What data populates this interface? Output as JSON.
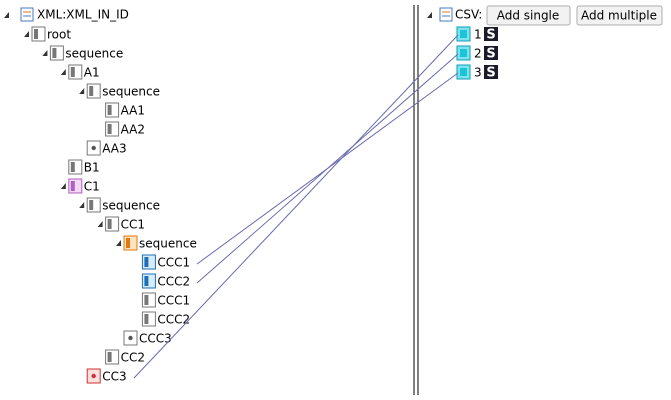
{
  "xml_tree": {
    "title": "XML:XML_IN_ID",
    "nodes": [
      {
        "label": "root"
      },
      {
        "label": "sequence"
      },
      {
        "label": "A1"
      },
      {
        "label": "sequence"
      },
      {
        "label": "AA1"
      },
      {
        "label": "AA2"
      },
      {
        "label": "AA3"
      },
      {
        "label": "B1"
      },
      {
        "label": "C1"
      },
      {
        "label": "sequence"
      },
      {
        "label": "CC1"
      },
      {
        "label": "sequence"
      },
      {
        "label": "CCC1"
      },
      {
        "label": "CCC2"
      },
      {
        "label": "CCC1"
      },
      {
        "label": "CCC2"
      },
      {
        "label": "CCC3"
      },
      {
        "label": "CC2"
      },
      {
        "label": "CC3"
      }
    ]
  },
  "csv_panel": {
    "title": "CSV:",
    "buttons": [
      "Add single",
      "Add multiple"
    ],
    "rows": [
      {
        "label": "1",
        "badge": "S"
      },
      {
        "label": "2",
        "badge": "S"
      },
      {
        "label": "3",
        "badge": "S"
      }
    ]
  }
}
